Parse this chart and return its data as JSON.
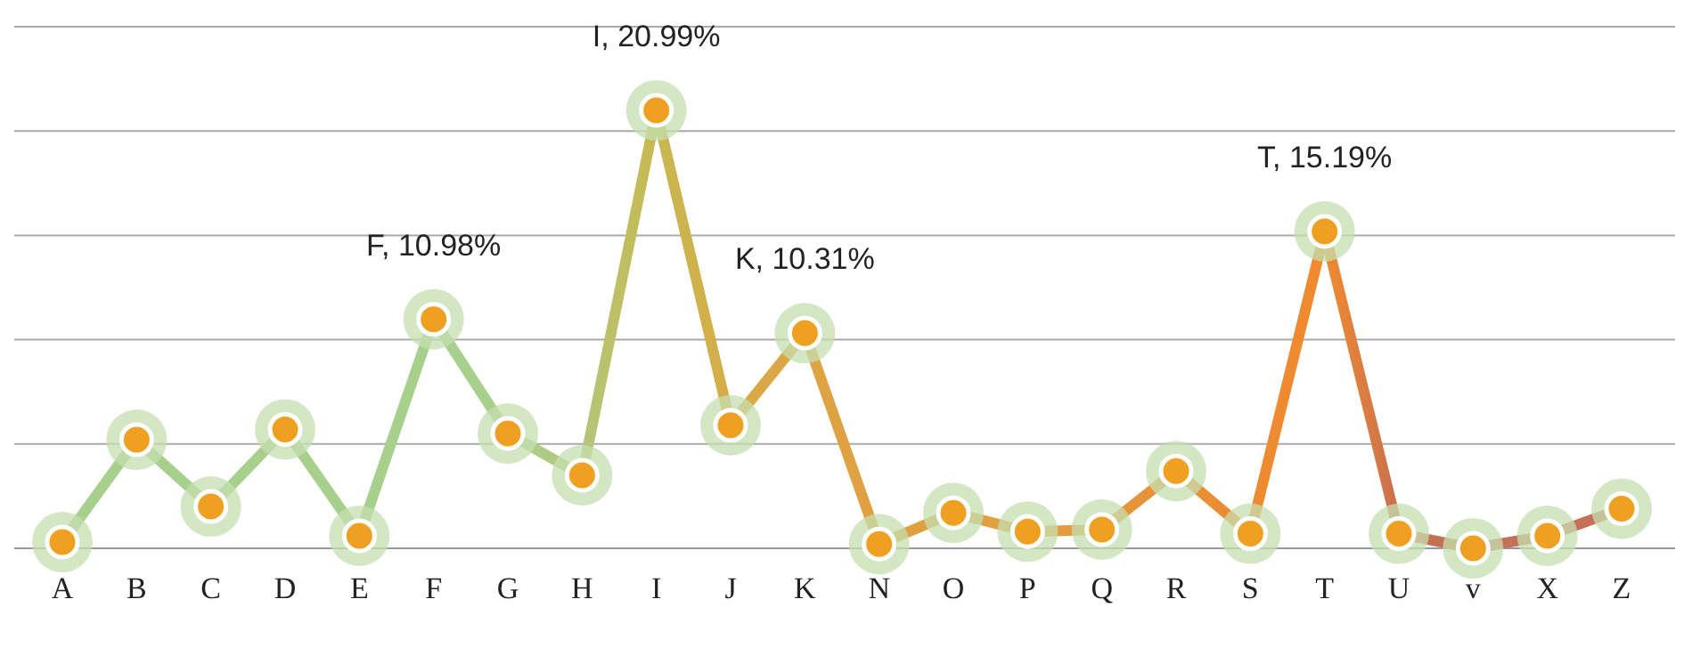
{
  "chart_data": {
    "type": "line",
    "categories": [
      "A",
      "B",
      "C",
      "D",
      "E",
      "F",
      "G",
      "H",
      "I",
      "J",
      "K",
      "N",
      "O",
      "P",
      "Q",
      "R",
      "S",
      "T",
      "U",
      "v",
      "X",
      "Z"
    ],
    "series": [
      {
        "color": "#f0a020",
        "colors": [
          "#a8d08d",
          "#a8d08d",
          "#a8d08d",
          "#a8d08d",
          "#a8d08d",
          "#a8d08d",
          "#a8d08d",
          "#b4c67a",
          "#c8b850",
          "#d6ac48",
          "#dea444",
          "#e0a040",
          "#e0a040",
          "#e0a040",
          "#e4983c",
          "#e89036",
          "#ee8a30",
          "#f08a30",
          "#c87050",
          "#c07055",
          "#c4705a",
          "#c8705a"
        ],
        "values": [
          0.3,
          5.2,
          2.0,
          5.7,
          0.6,
          10.98,
          5.5,
          3.5,
          20.99,
          5.9,
          10.31,
          0.2,
          1.7,
          0.8,
          0.9,
          3.7,
          0.7,
          15.19,
          0.7,
          0.0,
          0.6,
          1.9
        ],
        "value_labels": [
          null,
          null,
          null,
          null,
          null,
          "F, 10.98%",
          null,
          null,
          "I, 20.99%",
          null,
          "K, 10.31%",
          null,
          null,
          null,
          null,
          null,
          null,
          "T, 15.19%",
          null,
          null,
          null,
          null
        ]
      }
    ],
    "ylim": [
      0,
      25
    ],
    "yticks": [
      {
        "value": 0,
        "label": null
      },
      {
        "value": 5,
        "label": null
      },
      {
        "value": 10,
        "label": null
      },
      {
        "value": 15,
        "label": null
      },
      {
        "value": 20,
        "label": null
      },
      {
        "value": 25,
        "label": null
      }
    ],
    "grid": "y",
    "tick_labels": "x",
    "marker": "circle",
    "line_style": "solid"
  }
}
